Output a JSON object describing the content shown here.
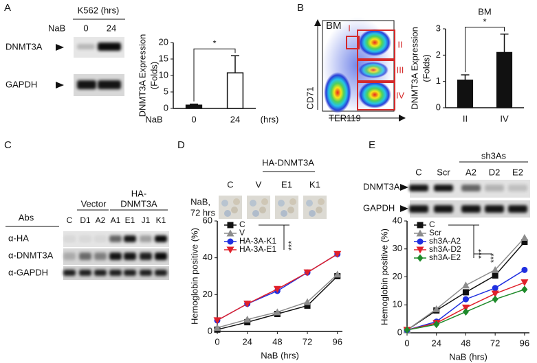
{
  "figure": {
    "panels": [
      "A",
      "B",
      "C",
      "D",
      "E"
    ],
    "a_blot": {
      "header": "K562 (hrs)",
      "row_label": "NaB",
      "lanes": [
        "0",
        "24"
      ],
      "rows": [
        "DNMT3A",
        "GAPDH"
      ]
    },
    "b_flow": {
      "label": "BM",
      "gates": [
        "I",
        "II",
        "III",
        "IV"
      ],
      "ylabel": "CD71",
      "xlabel": "TER119"
    },
    "c_blot": {
      "vector_label": "Vector",
      "ha_label": [
        "HA-",
        "DNMT3A"
      ],
      "abs_label": "Abs",
      "lanes": [
        "C",
        "D1",
        "A2",
        "A1",
        "E1",
        "J1",
        "K1"
      ],
      "rows": [
        "α-HA",
        "α-DNMT3A",
        "α-GAPDH"
      ]
    },
    "d_images": {
      "group": "HA-DNMT3A",
      "labels": [
        "C",
        "V",
        "E1",
        "K1"
      ],
      "row_label": [
        "NaB,",
        "72 hrs"
      ]
    },
    "e_blot": {
      "group": "sh3As",
      "lanes": [
        "C",
        "Scr",
        "A2",
        "D2",
        "E2"
      ],
      "rows": [
        "DNMT3A",
        "GAPDH"
      ]
    }
  },
  "chart_data": [
    {
      "type": "bar",
      "ylabel": [
        "DNMT3A Expression",
        "(Folds)"
      ],
      "x_row_label": "NaB",
      "x_unit": "(hrs)",
      "categories": [
        "0",
        "24"
      ],
      "values": [
        1,
        10.8
      ],
      "errors": [
        0.3,
        5.2
      ],
      "colors": [
        "#111111",
        "#ffffff"
      ],
      "ylim": [
        0,
        20
      ],
      "yticks": [
        0,
        5,
        10,
        15,
        20
      ],
      "annotations": [
        "*"
      ]
    },
    {
      "type": "bar",
      "title": "BM",
      "ylabel": [
        "DNMT3A  Expression",
        "(Folds)"
      ],
      "categories": [
        "II",
        "IV"
      ],
      "values": [
        1.05,
        2.1
      ],
      "errors": [
        0.2,
        0.7
      ],
      "colors": [
        "#111111",
        "#111111"
      ],
      "ylim": [
        0,
        3
      ],
      "yticks": [
        0,
        1,
        2,
        3
      ],
      "annotations": [
        "*"
      ]
    },
    {
      "type": "line",
      "ylabel": "Hemoglobin positive (%)",
      "xlabel": "NaB (hrs)",
      "x": [
        0,
        24,
        48,
        72,
        96
      ],
      "xlim": [
        0,
        100
      ],
      "xticks": [
        0,
        24,
        48,
        72,
        96
      ],
      "ylim": [
        0,
        60
      ],
      "yticks": [
        0,
        20,
        40,
        60
      ],
      "annotations": [
        "***"
      ],
      "series": [
        {
          "name": "C",
          "color": "#111111",
          "marker": "square",
          "values": [
            1,
            5,
            9.5,
            14,
            30
          ]
        },
        {
          "name": "V",
          "color": "#8c8c8c",
          "marker": "triangle",
          "values": [
            2,
            6.5,
            10.5,
            16,
            31
          ]
        },
        {
          "name": "HA-3A-K1",
          "color": "#1f2fe0",
          "marker": "circle",
          "values": [
            6,
            15,
            22,
            32,
            42
          ]
        },
        {
          "name": "HA-3A-E1",
          "color": "#e0202a",
          "marker": "triangle-down",
          "values": [
            6,
            15,
            23,
            32,
            42
          ]
        }
      ]
    },
    {
      "type": "line",
      "ylabel": "Hemoglobin positive (%)",
      "xlabel": "NaB (hrs)",
      "x": [
        0,
        24,
        48,
        72,
        96
      ],
      "xlim": [
        0,
        100
      ],
      "xticks": [
        0,
        24,
        48,
        72,
        96
      ],
      "ylim": [
        0,
        40
      ],
      "yticks": [
        0,
        10,
        20,
        30,
        40
      ],
      "annotations": [
        "***",
        "***"
      ],
      "series": [
        {
          "name": "C",
          "color": "#111111",
          "marker": "square",
          "values": [
            1,
            8,
            14.5,
            20.5,
            32.5
          ]
        },
        {
          "name": "Scr",
          "color": "#8c8c8c",
          "marker": "triangle",
          "values": [
            1,
            8.5,
            17,
            22.5,
            34
          ]
        },
        {
          "name": "sh3A-A2",
          "color": "#1f2fe0",
          "marker": "circle",
          "values": [
            1,
            4,
            12,
            16,
            22.5
          ]
        },
        {
          "name": "sh3A-D2",
          "color": "#e0202a",
          "marker": "triangle-down",
          "values": [
            1,
            3.5,
            9,
            14,
            18
          ]
        },
        {
          "name": "sh3A-E2",
          "color": "#1e8a2a",
          "marker": "diamond",
          "values": [
            1,
            3,
            7.5,
            12,
            15.5
          ]
        }
      ]
    }
  ]
}
